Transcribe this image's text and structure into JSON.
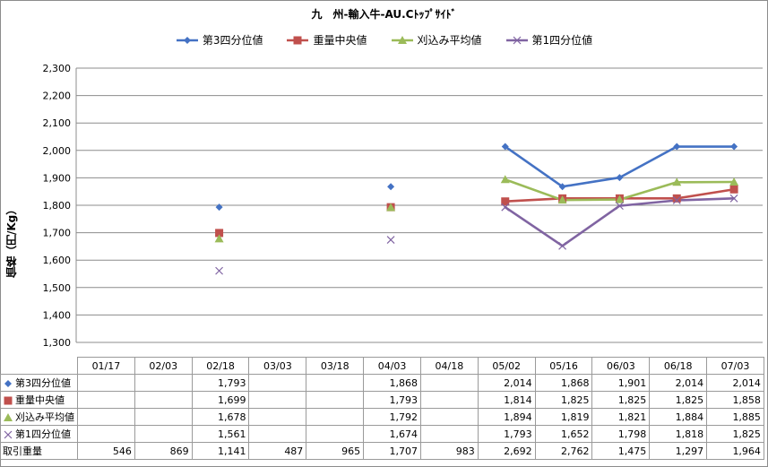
{
  "chart_data": {
    "type": "line",
    "title": "九　州-輸入牛-AU.Cﾄｯﾌﾟｻｲﾄﾞ",
    "ylabel": "価格（円/Kg）",
    "ylim": [
      1300,
      2300
    ],
    "yticks": [
      "1,300",
      "1,400",
      "1,500",
      "1,600",
      "1,700",
      "1,800",
      "1,900",
      "2,000",
      "2,100",
      "2,200",
      "2,300"
    ],
    "grid": true,
    "legend_position": "top",
    "categories": [
      "01/17",
      "02/03",
      "02/18",
      "03/03",
      "03/18",
      "04/03",
      "04/18",
      "05/02",
      "05/16",
      "06/03",
      "06/18",
      "07/03"
    ],
    "series": [
      {
        "name": "第3四分位値",
        "color": "#4472c4",
        "marker": "diamond",
        "values": [
          null,
          null,
          1793,
          null,
          null,
          1868,
          null,
          2014,
          1868,
          1901,
          2014,
          2014
        ],
        "labels": [
          "",
          "",
          "1,793",
          "",
          "",
          "1,868",
          "",
          "2,014",
          "1,868",
          "1,901",
          "2,014",
          "2,014"
        ]
      },
      {
        "name": "重量中央値",
        "color": "#c0504d",
        "marker": "square",
        "values": [
          null,
          null,
          1699,
          null,
          null,
          1793,
          null,
          1814,
          1825,
          1825,
          1825,
          1858
        ],
        "labels": [
          "",
          "",
          "1,699",
          "",
          "",
          "1,793",
          "",
          "1,814",
          "1,825",
          "1,825",
          "1,825",
          "1,858"
        ]
      },
      {
        "name": "刈込み平均値",
        "color": "#9bbb59",
        "marker": "triangle",
        "values": [
          null,
          null,
          1678,
          null,
          null,
          1792,
          null,
          1894,
          1819,
          1821,
          1884,
          1885
        ],
        "labels": [
          "",
          "",
          "1,678",
          "",
          "",
          "1,792",
          "",
          "1,894",
          "1,819",
          "1,821",
          "1,884",
          "1,885"
        ]
      },
      {
        "name": "第1四分位値",
        "color": "#8064a2",
        "marker": "x",
        "values": [
          null,
          null,
          1561,
          null,
          null,
          1674,
          null,
          1793,
          1652,
          1798,
          1818,
          1825
        ],
        "labels": [
          "",
          "",
          "1,561",
          "",
          "",
          "1,674",
          "",
          "1,793",
          "1,652",
          "1,798",
          "1,818",
          "1,825"
        ]
      }
    ],
    "extra_row": {
      "name": "取引重量",
      "labels": [
        "546",
        "869",
        "1,141",
        "487",
        "965",
        "1,707",
        "983",
        "2,692",
        "2,762",
        "1,475",
        "1,297",
        "1,964"
      ]
    }
  }
}
